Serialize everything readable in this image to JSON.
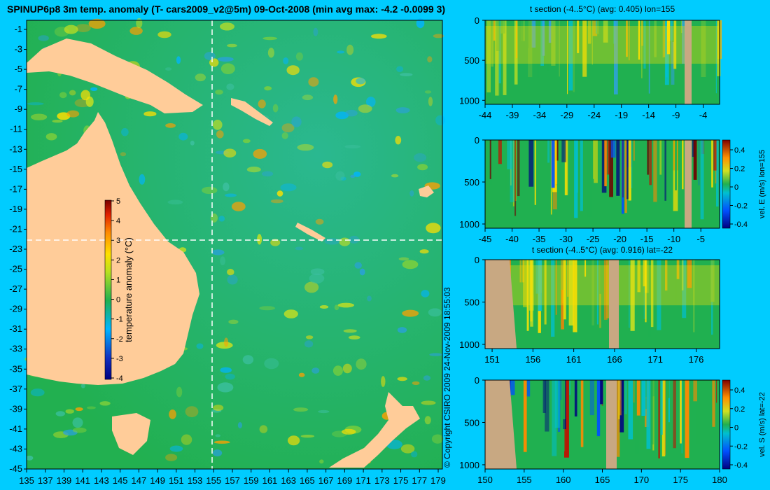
{
  "map": {
    "title": "SPINUP6p8 3m temp. anomaly (T- cars2009_v2@5m) 09-Oct-2008 (min avg max: -4.2 -0.0099 3)",
    "lat_ticks": [
      "-1",
      "-3",
      "-5",
      "-7",
      "-9",
      "-11",
      "-13",
      "-15",
      "-17",
      "-19",
      "-21",
      "-23",
      "-25",
      "-27",
      "-29",
      "-31",
      "-33",
      "-35",
      "-37",
      "-39",
      "-41",
      "-43",
      "-45"
    ],
    "lon_ticks": [
      "135",
      "137",
      "139",
      "141",
      "143",
      "145",
      "147",
      "149",
      "151",
      "153",
      "155",
      "157",
      "159",
      "161",
      "163",
      "165",
      "167",
      "169",
      "171",
      "173",
      "175",
      "177",
      "179"
    ],
    "colorbar": {
      "label": "temperature anomaly (°C)",
      "ticks": [
        "5",
        "4",
        "3",
        "2",
        "1",
        "0",
        "-1",
        "-2",
        "-3",
        "-4"
      ]
    },
    "copyright": "© Copyright CSIRO 2009   24-Nov-2009 18:55:03",
    "section_lon": 155,
    "section_lat": -22
  },
  "panels": [
    {
      "id": "t-section-lon",
      "title": "t section (-4..5°C) (avg: 0.405) lon=155",
      "y_ticks": [
        "0",
        "500",
        "1000"
      ],
      "x_ticks": [
        "-44",
        "-39",
        "-34",
        "-29",
        "-24",
        "-19",
        "-14",
        "-9",
        "-4"
      ],
      "colorbar": null
    },
    {
      "id": "vel-e-lon",
      "title": "",
      "y_ticks": [
        "0",
        "500",
        "1000"
      ],
      "x_ticks": [
        "-45",
        "-40",
        "-35",
        "-30",
        "-25",
        "-20",
        "-15",
        "-10",
        "-5"
      ],
      "colorbar": {
        "label": "vel. E (m/s) lon=155",
        "ticks": [
          "0.4",
          "0.2",
          "0",
          "-0.2",
          "-0.4"
        ]
      }
    },
    {
      "id": "t-section-lat",
      "title": "t section (-4..5°C) (avg: 0.916) lat=-22",
      "y_ticks": [
        "0",
        "500",
        "1000"
      ],
      "x_ticks": [
        "151",
        "156",
        "161",
        "166",
        "171",
        "176"
      ],
      "colorbar": null
    },
    {
      "id": "vel-s-lat",
      "title": "",
      "y_ticks": [
        "0",
        "500",
        "1000"
      ],
      "x_ticks": [
        "150",
        "155",
        "160",
        "165",
        "170",
        "175",
        "180"
      ],
      "colorbar": {
        "label": "vel. S (m/s) lat=-22",
        "ticks": [
          "0.4",
          "0.2",
          "0",
          "-0.2",
          "-0.4"
        ]
      }
    }
  ],
  "colors": {
    "background": "#00ccff",
    "land": "#ffcc99",
    "section_land": "#c8a882",
    "ocean_base": "#20b050"
  },
  "chart_data": [
    {
      "type": "heatmap",
      "title": "SPINUP6p8 3m temp. anomaly (T- cars2009_v2@5m) 09-Oct-2008 (min avg max: -4.2 -0.0099 3)",
      "xlabel": "",
      "ylabel": "",
      "xlim": [
        135,
        180
      ],
      "ylim": [
        -45,
        0
      ],
      "color_range": [
        -4,
        5
      ],
      "colorbar_label": "temperature anomaly (°C)",
      "min": -4.2,
      "avg": -0.0099,
      "max": 3
    },
    {
      "type": "heatmap",
      "title": "t section (-4..5°C) (avg: 0.405) lon=155",
      "xlim": [
        -45,
        0
      ],
      "ylim": [
        1050,
        0
      ],
      "color_range": [
        -4,
        5
      ],
      "avg": 0.405
    },
    {
      "type": "heatmap",
      "title": "",
      "xlim": [
        -45,
        0
      ],
      "ylim": [
        1050,
        0
      ],
      "color_range": [
        -0.4,
        0.4
      ],
      "colorbar_label": "vel. E (m/s) lon=155"
    },
    {
      "type": "heatmap",
      "title": "t section (-4..5°C) (avg: 0.916) lat=-22",
      "xlim": [
        150,
        180
      ],
      "ylim": [
        1050,
        0
      ],
      "color_range": [
        -4,
        5
      ],
      "avg": 0.916
    },
    {
      "type": "heatmap",
      "title": "",
      "xlim": [
        150,
        180
      ],
      "ylim": [
        1050,
        0
      ],
      "color_range": [
        -0.4,
        0.4
      ],
      "colorbar_label": "vel. S (m/s) lat=-22"
    }
  ]
}
